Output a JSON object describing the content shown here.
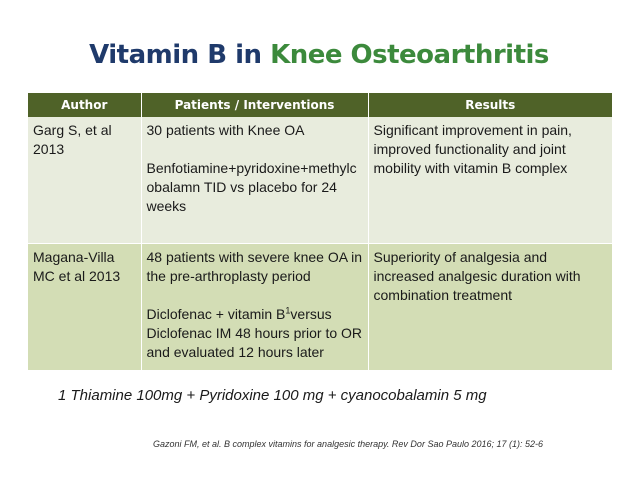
{
  "title": {
    "part1": "Vitamin B in ",
    "part2": "Knee Osteoarthritis"
  },
  "table": {
    "headers": [
      "Author",
      "Patients / Interventions",
      "Results"
    ],
    "rows": [
      {
        "author": "Garg S, et al 2013",
        "patients": "30 patients with Knee OA",
        "intervention": "Benfotiamine+pyridoxine+methylcobalamn TID vs placebo for 24 weeks",
        "results": "Significant improvement in pain, improved functionality and joint mobility with vitamin B complex"
      },
      {
        "author": "Magana-Villa MC et al 2013",
        "patients": "48 patients with severe knee OA in the pre-arthroplasty period",
        "intervention_before": "Diclofenac + vitamin B",
        "intervention_sup": "1",
        "intervention_after": "versus Diclofenac IM 48 hours prior to OR and evaluated 12 hours later",
        "results": "Superiority of analgesia and increased analgesic duration with combination treatment"
      }
    ]
  },
  "footnote": "1 Thiamine 100mg + Pyridoxine 100 mg + cyanocobalamin 5 mg",
  "citation": "Gazoni FM, et al. B complex vitamins for analgesic therapy. Rev Dor Sao Paulo 2016; 17 (1): 52-6",
  "colors": {
    "title_blue": "#1f3a6b",
    "title_green": "#3c8a3c",
    "header_bg": "#4f6228",
    "row1_bg": "#e8ecdd",
    "row2_bg": "#d3ddb5"
  }
}
